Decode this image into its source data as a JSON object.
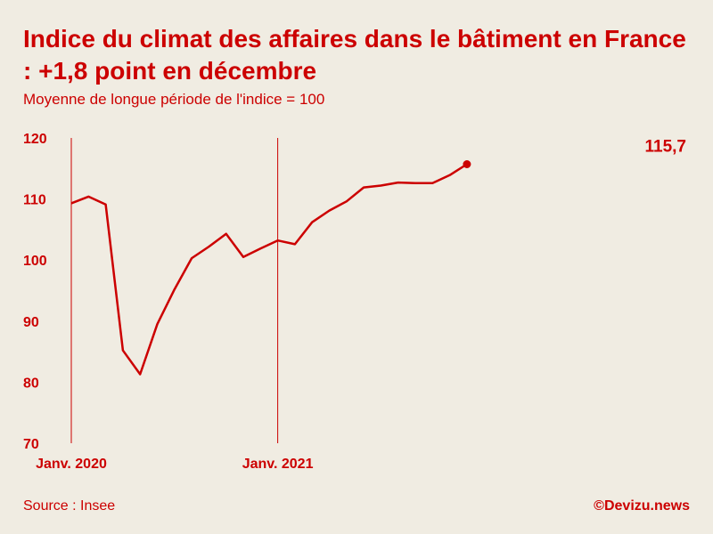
{
  "header": {
    "title": "Indice du climat des affaires dans le bâtiment en France : +1,8 point en décembre",
    "subtitle": "Moyenne de longue période de l'indice = 100"
  },
  "footer": {
    "source": "Source : Insee",
    "credit": "©Devizu.news"
  },
  "colors": {
    "accent": "#cc0000",
    "background": "#f0ece2"
  },
  "chart_data": {
    "type": "line",
    "title": "Indice du climat des affaires dans le bâtiment en France : +1,8 point en décembre",
    "subtitle": "Moyenne de longue période de l'indice = 100",
    "xlabel": "",
    "ylabel": "",
    "x": [
      "2020-01",
      "2020-02",
      "2020-03",
      "2020-04",
      "2020-05",
      "2020-06",
      "2020-07",
      "2020-08",
      "2020-09",
      "2020-10",
      "2020-11",
      "2020-12",
      "2021-01",
      "2021-02",
      "2021-03",
      "2021-04",
      "2021-05",
      "2021-06",
      "2021-07",
      "2021-08",
      "2021-09",
      "2021-10",
      "2021-11",
      "2021-12"
    ],
    "series": [
      {
        "values": [
          109.3,
          110.4,
          109.1,
          85.2,
          81.3,
          89.5,
          95.2,
          100.3,
          102.2,
          104.3,
          100.5,
          101.9,
          103.2,
          102.6,
          106.2,
          108.1,
          109.6,
          111.9,
          112.2,
          112.7,
          112.6,
          112.6,
          113.9,
          115.7
        ]
      }
    ],
    "ylim": [
      70,
      120
    ],
    "yticks": [
      "120",
      "110",
      "100",
      "90",
      "80",
      "70"
    ],
    "xticks": [
      {
        "x": "2020-01",
        "label": "Janv. 2020"
      },
      {
        "x": "2021-01",
        "label": "Janv. 2021"
      }
    ],
    "annotation": {
      "x": "2021-12",
      "label": "115,7"
    },
    "grid": false,
    "legend": "none"
  }
}
